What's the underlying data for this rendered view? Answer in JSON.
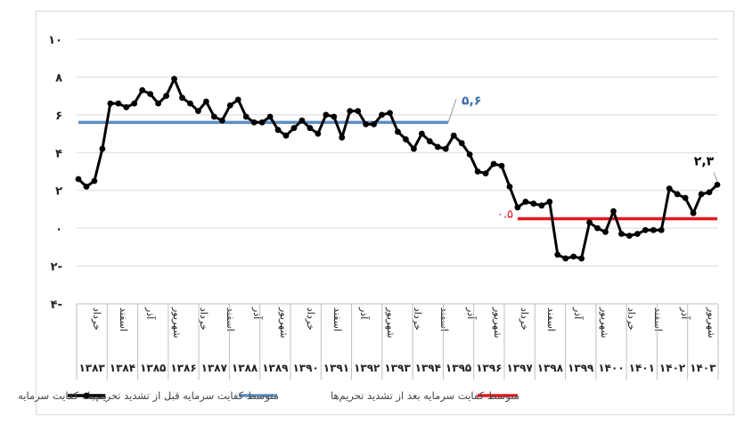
{
  "chart_data": {
    "type": "line",
    "title": "",
    "xlabel": "",
    "ylabel": "",
    "ylim": [
      -4,
      10
    ],
    "y_ticks": [
      {
        "value": 10,
        "label": "۱۰"
      },
      {
        "value": 8,
        "label": "۸"
      },
      {
        "value": 6,
        "label": "۶"
      },
      {
        "value": 4,
        "label": "۴"
      },
      {
        "value": 2,
        "label": "۲"
      },
      {
        "value": 0,
        "label": "۰"
      },
      {
        "value": -2,
        "label": "۲-"
      },
      {
        "value": -4,
        "label": "۴-"
      }
    ],
    "grid": true,
    "legend_position": "bottom",
    "x_season_labels": [
      "خرداد",
      "اسفند",
      "آذر",
      "شهریور",
      "خرداد",
      "اسفند",
      "آذر",
      "شهریور",
      "خرداد",
      "اسفند",
      "آذر",
      "شهریور",
      "خرداد",
      "اسفند",
      "آذر",
      "شهریور",
      "خرداد",
      "اسفند",
      "آذر",
      "شهریور",
      "خرداد",
      "اسفند",
      "آذر",
      "شهریور"
    ],
    "x_year_labels": [
      "۱۳۸۳",
      "۱۳۸۴",
      "۱۳۸۵",
      "۱۳۸۶",
      "۱۳۸۷",
      "۱۳۸۸",
      "۱۳۸۹",
      "۱۳۹۰",
      "۱۳۹۱",
      "۱۳۹۲",
      "۱۳۹۳",
      "۱۳۹۴",
      "۱۳۹۵",
      "۱۳۹۶",
      "۱۳۹۷",
      "۱۳۹۸",
      "۱۳۹۹",
      "۱۴۰۰",
      "۱۴۰۱",
      "۱۴۰۲",
      "۱۴۰۳"
    ],
    "series": [
      {
        "name": "نسبت کفایت سرمایه",
        "color": "#000000",
        "values": [
          2.6,
          2.2,
          2.5,
          4.2,
          6.6,
          6.6,
          6.4,
          6.6,
          7.3,
          7.1,
          6.6,
          7.0,
          7.9,
          6.9,
          6.6,
          6.2,
          6.7,
          5.9,
          5.7,
          6.5,
          6.8,
          5.9,
          5.6,
          5.6,
          5.9,
          5.2,
          4.9,
          5.3,
          5.7,
          5.3,
          5.0,
          6.0,
          5.9,
          4.8,
          6.2,
          6.2,
          5.5,
          5.5,
          6.0,
          6.1,
          5.1,
          4.7,
          4.2,
          5.0,
          4.6,
          4.3,
          4.2,
          4.9,
          4.5,
          3.9,
          3.0,
          2.9,
          3.4,
          3.3,
          2.2,
          1.1,
          1.4,
          1.3,
          1.2,
          1.4,
          -1.4,
          -1.6,
          -1.5,
          -1.6,
          0.3,
          0.0,
          -0.2,
          0.9,
          -0.3,
          -0.4,
          -0.3,
          -0.1,
          -0.1,
          -0.1,
          2.1,
          1.8,
          1.6,
          0.8,
          1.8,
          1.9,
          2.3
        ]
      },
      {
        "name": "متوسط کفایت سرمایه قبل از تشدید تحریم‌ها",
        "color": "#5b8ec3",
        "value": 5.6,
        "label": "۵,۶"
      },
      {
        "name": "متوسط کفایت سرمایه بعد از تشدید تحریم‌ها",
        "color": "#e8171f",
        "value": 0.5,
        "label": "۰.۵"
      }
    ],
    "annotations": [
      {
        "text": "۲,۳",
        "series": "نسبت کفایت سرمایه"
      }
    ]
  }
}
